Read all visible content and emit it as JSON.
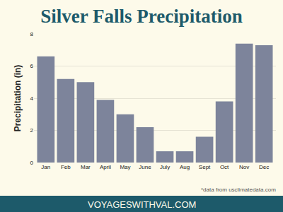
{
  "chart_data": {
    "type": "bar",
    "title": "Silver Falls Precipitation",
    "y_label": "Precipitation (in)",
    "categories": [
      "Jan",
      "Feb",
      "Mar",
      "April",
      "May",
      "June",
      "July",
      "Aug",
      "Sept",
      "Oct",
      "Nov",
      "Dec"
    ],
    "values": [
      6.6,
      5.2,
      5.0,
      3.9,
      3.0,
      2.2,
      0.7,
      0.7,
      1.6,
      3.8,
      7.4,
      7.3
    ],
    "color": "#7d849b",
    "ylim": [
      0,
      8
    ],
    "yticks": [
      0,
      2,
      4,
      6,
      8
    ],
    "grid": true,
    "annotations": [
      "*data from usclimatedata.com",
      "VOYAGESWITHVAL.COM"
    ]
  }
}
